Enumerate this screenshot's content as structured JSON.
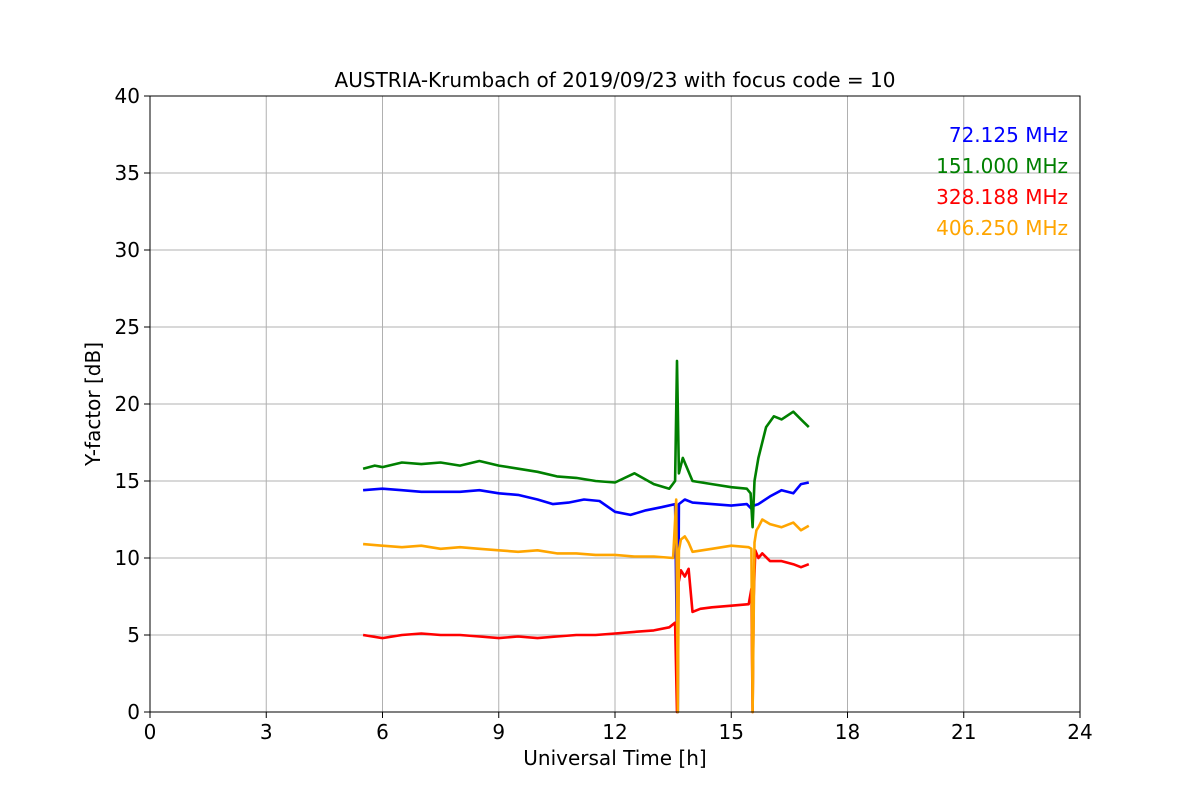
{
  "chart_data": {
    "type": "line",
    "title": "AUSTRIA-Krumbach of 2019/09/23 with focus code = 10",
    "xlabel": "Universal Time [h]",
    "ylabel": "Y-factor [dB]",
    "xlim": [
      0,
      24
    ],
    "ylim": [
      0,
      40
    ],
    "xticks": [
      0,
      3,
      6,
      9,
      12,
      15,
      18,
      21,
      24
    ],
    "yticks": [
      0,
      5,
      10,
      15,
      20,
      25,
      30,
      35,
      40
    ],
    "grid": true,
    "legend_position": "top-right",
    "series": [
      {
        "name": "72.125 MHz",
        "color": "#0000ff",
        "x": [
          5.5,
          6.0,
          6.5,
          7.0,
          7.5,
          8.0,
          8.5,
          9.0,
          9.5,
          10.0,
          10.4,
          10.8,
          11.2,
          11.6,
          12.0,
          12.4,
          12.8,
          13.2,
          13.55,
          13.62,
          13.65,
          13.8,
          14.0,
          14.5,
          15.0,
          15.4,
          15.52,
          15.58,
          15.7,
          16.0,
          16.3,
          16.6,
          16.8,
          17.0
        ],
        "y": [
          14.4,
          14.5,
          14.4,
          14.3,
          14.3,
          14.3,
          14.4,
          14.2,
          14.1,
          13.8,
          13.5,
          13.6,
          13.8,
          13.7,
          13.0,
          12.8,
          13.1,
          13.3,
          13.5,
          0.0,
          13.5,
          13.8,
          13.6,
          13.5,
          13.4,
          13.5,
          13.2,
          13.4,
          13.5,
          14.0,
          14.4,
          14.2,
          14.8,
          14.9
        ]
      },
      {
        "name": "151.000 MHz",
        "color": "#008000",
        "x": [
          5.5,
          5.8,
          6.0,
          6.5,
          7.0,
          7.5,
          8.0,
          8.5,
          9.0,
          9.5,
          10.0,
          10.5,
          11.0,
          11.5,
          12.0,
          12.5,
          13.0,
          13.4,
          13.55,
          13.6,
          13.65,
          13.75,
          14.0,
          14.5,
          15.0,
          15.4,
          15.5,
          15.55,
          15.6,
          15.7,
          15.9,
          16.1,
          16.3,
          16.6,
          16.8,
          17.0
        ],
        "y": [
          15.8,
          16.0,
          15.9,
          16.2,
          16.1,
          16.2,
          16.0,
          16.3,
          16.0,
          15.8,
          15.6,
          15.3,
          15.2,
          15.0,
          14.9,
          15.5,
          14.8,
          14.5,
          15.0,
          22.8,
          15.5,
          16.5,
          15.0,
          14.8,
          14.6,
          14.5,
          14.2,
          12.0,
          15.0,
          16.5,
          18.5,
          19.2,
          19.0,
          19.5,
          19.0,
          18.5
        ]
      },
      {
        "name": "328.188 MHz",
        "color": "#ff0000",
        "x": [
          5.5,
          6.0,
          6.5,
          7.0,
          7.5,
          8.0,
          8.5,
          9.0,
          9.5,
          10.0,
          10.5,
          11.0,
          11.5,
          12.0,
          12.5,
          13.0,
          13.4,
          13.55,
          13.6,
          13.62,
          13.65,
          13.7,
          13.8,
          13.9,
          14.0,
          14.2,
          14.5,
          15.0,
          15.45,
          15.52,
          15.55,
          15.58,
          15.62,
          15.7,
          15.8,
          16.0,
          16.3,
          16.6,
          16.8,
          17.0
        ],
        "y": [
          5.0,
          4.8,
          5.0,
          5.1,
          5.0,
          5.0,
          4.9,
          4.8,
          4.9,
          4.8,
          4.9,
          5.0,
          5.0,
          5.1,
          5.2,
          5.3,
          5.5,
          5.8,
          0.0,
          9.0,
          8.5,
          9.2,
          8.8,
          9.3,
          6.5,
          6.7,
          6.8,
          6.9,
          7.0,
          8.0,
          0.0,
          7.5,
          10.5,
          10.0,
          10.3,
          9.8,
          9.8,
          9.6,
          9.4,
          9.6
        ]
      },
      {
        "name": "406.250 MHz",
        "color": "#ffa500",
        "x": [
          5.5,
          6.0,
          6.5,
          7.0,
          7.5,
          8.0,
          8.5,
          9.0,
          9.5,
          10.0,
          10.5,
          11.0,
          11.5,
          12.0,
          12.5,
          13.0,
          13.5,
          13.58,
          13.62,
          13.65,
          13.7,
          13.8,
          13.9,
          14.0,
          14.5,
          15.0,
          15.45,
          15.52,
          15.55,
          15.6,
          15.65,
          15.7,
          15.8,
          16.0,
          16.3,
          16.6,
          16.8,
          17.0
        ],
        "y": [
          10.9,
          10.8,
          10.7,
          10.8,
          10.6,
          10.7,
          10.6,
          10.5,
          10.4,
          10.5,
          10.3,
          10.3,
          10.2,
          10.2,
          10.1,
          10.1,
          10.0,
          13.8,
          0.0,
          10.5,
          11.2,
          11.4,
          11.0,
          10.4,
          10.6,
          10.8,
          10.7,
          10.6,
          0.0,
          11.0,
          11.8,
          12.0,
          12.5,
          12.2,
          12.0,
          12.3,
          11.8,
          12.1
        ]
      }
    ]
  }
}
